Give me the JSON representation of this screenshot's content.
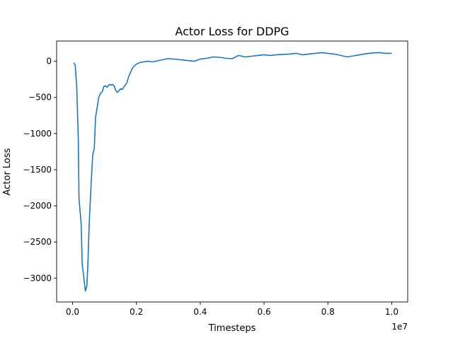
{
  "chart_data": {
    "type": "line",
    "title": "Actor Loss for DDPG",
    "xlabel": "Timesteps",
    "ylabel": "Actor Loss",
    "x_offset_label": "1e7",
    "xlim": [
      -0.05,
      1.05
    ],
    "ylim": [
      -3330,
      280
    ],
    "x_ticks": [
      0.0,
      0.2,
      0.4,
      0.6,
      0.8,
      1.0
    ],
    "x_tick_labels": [
      "0.0",
      "0.2",
      "0.4",
      "0.6",
      "0.8",
      "1.0"
    ],
    "y_ticks": [
      0,
      -500,
      -1000,
      -1500,
      -2000,
      -2500,
      -3000
    ],
    "y_tick_labels": [
      "0",
      "−500",
      "−1000",
      "−1500",
      "−2000",
      "−2500",
      "−3000"
    ],
    "grid": false,
    "series": [
      {
        "color": "#1f77b4",
        "x": [
          0.003,
          0.008,
          0.013,
          0.018,
          0.02,
          0.023,
          0.025,
          0.027,
          0.03,
          0.034,
          0.04,
          0.042,
          0.045,
          0.048,
          0.052,
          0.058,
          0.063,
          0.068,
          0.072,
          0.078,
          0.082,
          0.088,
          0.093,
          0.098,
          0.103,
          0.108,
          0.113,
          0.118,
          0.12,
          0.125,
          0.13,
          0.135,
          0.14,
          0.145,
          0.15,
          0.155,
          0.16,
          0.165,
          0.17,
          0.175,
          0.18,
          0.185,
          0.19,
          0.2,
          0.21,
          0.22,
          0.23,
          0.24,
          0.25,
          0.26,
          0.27,
          0.28,
          0.29,
          0.3,
          0.32,
          0.34,
          0.36,
          0.38,
          0.4,
          0.42,
          0.44,
          0.46,
          0.48,
          0.5,
          0.52,
          0.54,
          0.56,
          0.58,
          0.6,
          0.62,
          0.64,
          0.66,
          0.68,
          0.7,
          0.72,
          0.74,
          0.76,
          0.78,
          0.8,
          0.82,
          0.84,
          0.86,
          0.88,
          0.9,
          0.92,
          0.94,
          0.96,
          0.98,
          1.0
        ],
        "y": [
          -20,
          -50,
          -350,
          -1100,
          -1900,
          -2050,
          -2150,
          -2250,
          -2800,
          -2950,
          -3180,
          -3150,
          -3100,
          -2800,
          -2250,
          -1700,
          -1300,
          -1200,
          -780,
          -610,
          -500,
          -440,
          -420,
          -350,
          -340,
          -360,
          -330,
          -320,
          -330,
          -320,
          -340,
          -400,
          -430,
          -410,
          -380,
          -390,
          -360,
          -330,
          -300,
          -220,
          -170,
          -120,
          -80,
          -40,
          -20,
          -10,
          -5,
          0,
          -10,
          0,
          10,
          20,
          30,
          35,
          30,
          20,
          10,
          0,
          30,
          40,
          60,
          55,
          40,
          35,
          80,
          60,
          70,
          80,
          90,
          80,
          90,
          95,
          100,
          110,
          90,
          100,
          110,
          120,
          110,
          100,
          80,
          60,
          75,
          90,
          105,
          115,
          120,
          110,
          110
        ]
      }
    ]
  }
}
